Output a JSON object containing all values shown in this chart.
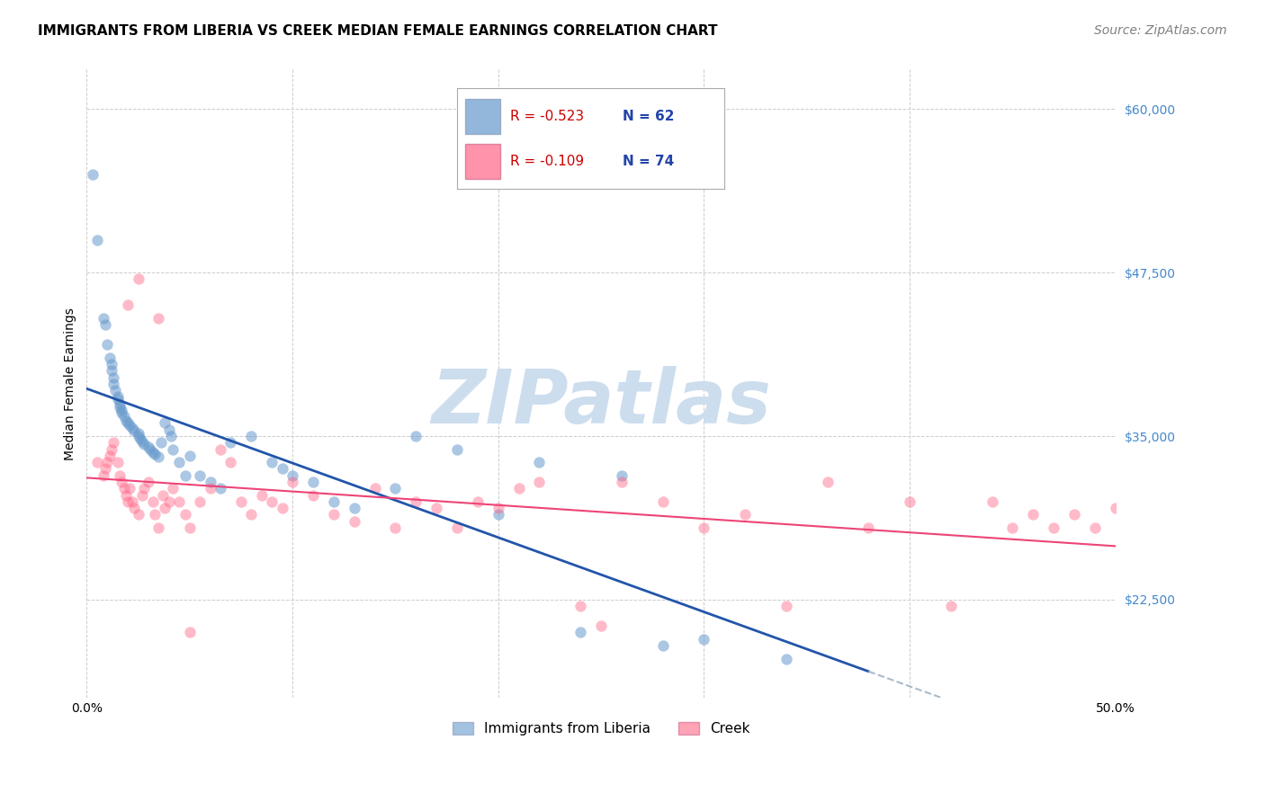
{
  "title": "IMMIGRANTS FROM LIBERIA VS CREEK MEDIAN FEMALE EARNINGS CORRELATION CHART",
  "source": "Source: ZipAtlas.com",
  "xlabel": "",
  "ylabel": "Median Female Earnings",
  "xlim": [
    0.0,
    0.5
  ],
  "ylim": [
    15000,
    63000
  ],
  "yticks": [
    22500,
    35000,
    47500,
    60000
  ],
  "ytick_labels": [
    "$22,500",
    "$35,000",
    "$47,500",
    "$60,000"
  ],
  "xticks": [
    0.0,
    0.1,
    0.2,
    0.3,
    0.4,
    0.5
  ],
  "xtick_labels": [
    "0.0%",
    "",
    "",
    "",
    "",
    "50.0%"
  ],
  "legend_blue_r": "R = -0.523",
  "legend_blue_n": "N = 62",
  "legend_pink_r": "R = -0.109",
  "legend_pink_n": "N = 74",
  "blue_color": "#6699cc",
  "pink_color": "#ff6688",
  "blue_line_color": "#2255aa",
  "pink_line_color": "#ee4477",
  "watermark": "ZIPatlas",
  "watermark_color": "#ccddee",
  "blue_x": [
    0.003,
    0.005,
    0.008,
    0.009,
    0.01,
    0.011,
    0.012,
    0.012,
    0.013,
    0.013,
    0.014,
    0.015,
    0.015,
    0.016,
    0.016,
    0.017,
    0.017,
    0.018,
    0.019,
    0.02,
    0.021,
    0.022,
    0.023,
    0.025,
    0.025,
    0.026,
    0.027,
    0.028,
    0.03,
    0.031,
    0.032,
    0.033,
    0.035,
    0.036,
    0.038,
    0.04,
    0.041,
    0.042,
    0.045,
    0.048,
    0.05,
    0.055,
    0.06,
    0.065,
    0.07,
    0.08,
    0.09,
    0.095,
    0.1,
    0.11,
    0.12,
    0.13,
    0.15,
    0.16,
    0.18,
    0.2,
    0.22,
    0.24,
    0.26,
    0.28,
    0.3,
    0.34
  ],
  "blue_y": [
    55000,
    50000,
    44000,
    43500,
    42000,
    41000,
    40500,
    40000,
    39500,
    39000,
    38500,
    38000,
    37800,
    37500,
    37200,
    37000,
    36800,
    36500,
    36200,
    36000,
    35800,
    35600,
    35400,
    35200,
    35000,
    34800,
    34600,
    34400,
    34200,
    34000,
    33800,
    33600,
    33400,
    34500,
    36000,
    35500,
    35000,
    34000,
    33000,
    32000,
    33500,
    32000,
    31500,
    31000,
    34500,
    35000,
    33000,
    32500,
    32000,
    31500,
    30000,
    29500,
    31000,
    35000,
    34000,
    29000,
    33000,
    20000,
    32000,
    19000,
    19500,
    18000
  ],
  "pink_x": [
    0.005,
    0.008,
    0.009,
    0.01,
    0.011,
    0.012,
    0.013,
    0.015,
    0.016,
    0.017,
    0.018,
    0.019,
    0.02,
    0.021,
    0.022,
    0.023,
    0.025,
    0.027,
    0.028,
    0.03,
    0.032,
    0.033,
    0.035,
    0.037,
    0.038,
    0.04,
    0.042,
    0.045,
    0.048,
    0.05,
    0.055,
    0.06,
    0.065,
    0.07,
    0.075,
    0.08,
    0.085,
    0.09,
    0.095,
    0.1,
    0.11,
    0.12,
    0.13,
    0.14,
    0.15,
    0.16,
    0.17,
    0.18,
    0.19,
    0.2,
    0.21,
    0.22,
    0.24,
    0.25,
    0.26,
    0.28,
    0.3,
    0.32,
    0.34,
    0.36,
    0.38,
    0.4,
    0.42,
    0.44,
    0.45,
    0.46,
    0.47,
    0.48,
    0.49,
    0.5,
    0.035,
    0.025,
    0.02,
    0.05
  ],
  "pink_y": [
    33000,
    32000,
    32500,
    33000,
    33500,
    34000,
    34500,
    33000,
    32000,
    31500,
    31000,
    30500,
    30000,
    31000,
    30000,
    29500,
    29000,
    30500,
    31000,
    31500,
    30000,
    29000,
    28000,
    30500,
    29500,
    30000,
    31000,
    30000,
    29000,
    28000,
    30000,
    31000,
    34000,
    33000,
    30000,
    29000,
    30500,
    30000,
    29500,
    31500,
    30500,
    29000,
    28500,
    31000,
    28000,
    30000,
    29500,
    28000,
    30000,
    29500,
    31000,
    31500,
    22000,
    20500,
    31500,
    30000,
    28000,
    29000,
    22000,
    31500,
    28000,
    30000,
    22000,
    30000,
    28000,
    29000,
    28000,
    29000,
    28000,
    29500,
    44000,
    47000,
    45000,
    20000
  ],
  "title_fontsize": 11,
  "axis_label_fontsize": 10,
  "tick_fontsize": 10,
  "legend_fontsize": 11,
  "source_fontsize": 10
}
